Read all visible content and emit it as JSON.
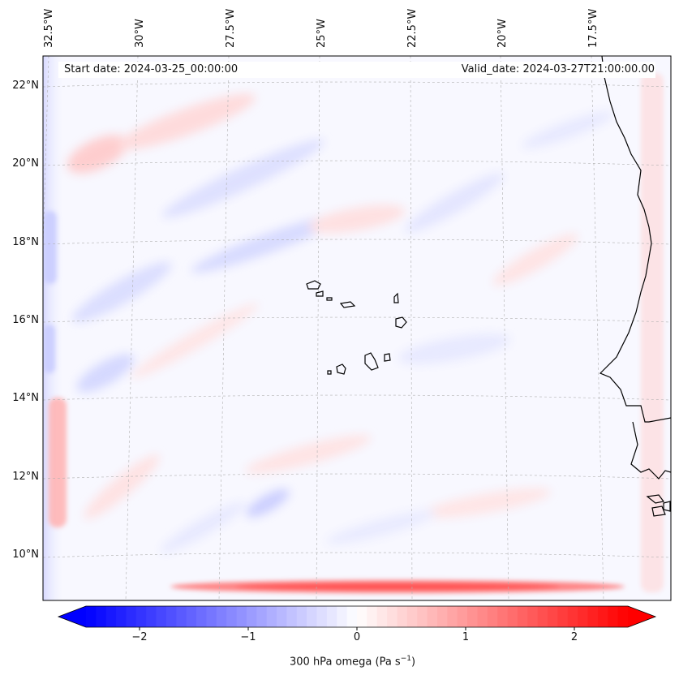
{
  "map": {
    "start_label": "Start date: 2024-03-25_00:00:00",
    "valid_label": "Valid_date: 2024-03-27T21:00:00.00",
    "lon_labels": [
      "32.5°W",
      "30°W",
      "27.5°W",
      "25°W",
      "22.5°W",
      "20°W",
      "17.5°W"
    ],
    "lat_labels": [
      "22°N",
      "20°N",
      "18°N",
      "16°N",
      "14°N",
      "12°N",
      "10°N"
    ],
    "extent": {
      "lon_min": -33,
      "lon_max": -15.5,
      "lat_min": 8.8,
      "lat_max": 22.8
    }
  },
  "colorbar": {
    "label": "300 hPa omega (Pa s",
    "label_sup": "−1",
    "label_end": ")",
    "ticks": [
      "−2",
      "−1",
      "0",
      "1",
      "2"
    ],
    "range": [
      -2.7,
      2.7
    ],
    "colors": {
      "neg": "#0000ff",
      "zero": "#ffffff",
      "pos": "#ff0000"
    }
  }
}
